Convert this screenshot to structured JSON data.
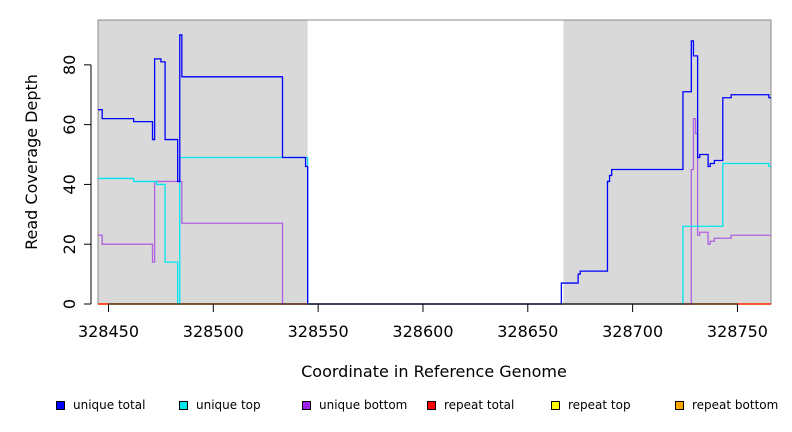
{
  "chart_data": {
    "type": "line",
    "xlabel": "Coordinate in Reference Genome",
    "ylabel": "Read Coverage Depth",
    "xlim": [
      328445,
      328766
    ],
    "ylim": [
      0,
      95
    ],
    "x_ticks": [
      328450,
      328500,
      328550,
      328600,
      328650,
      328700,
      328750
    ],
    "y_ticks": [
      0,
      20,
      40,
      60,
      80
    ],
    "shaded_regions": [
      [
        328445,
        328545
      ],
      [
        328667,
        328766
      ]
    ],
    "shade_color": "#d9d9d9",
    "series": [
      {
        "name": "unique total",
        "color": "#0000ff",
        "points": [
          [
            328445,
            65
          ],
          [
            328447,
            65
          ],
          [
            328447,
            62
          ],
          [
            328462,
            62
          ],
          [
            328462,
            61
          ],
          [
            328471,
            61
          ],
          [
            328471,
            55
          ],
          [
            328472,
            55
          ],
          [
            328472,
            82
          ],
          [
            328475,
            82
          ],
          [
            328475,
            81
          ],
          [
            328477,
            81
          ],
          [
            328477,
            55
          ],
          [
            328483,
            55
          ],
          [
            328483,
            41
          ],
          [
            328484,
            41
          ],
          [
            328484,
            90
          ],
          [
            328485,
            90
          ],
          [
            328485,
            76
          ],
          [
            328533,
            76
          ],
          [
            328533,
            49
          ],
          [
            328544,
            49
          ],
          [
            328544,
            46
          ],
          [
            328545,
            46
          ],
          [
            328545,
            0
          ],
          [
            328666,
            0
          ],
          [
            328666,
            7
          ],
          [
            328674,
            7
          ],
          [
            328674,
            10
          ],
          [
            328675,
            10
          ],
          [
            328675,
            11
          ],
          [
            328688,
            11
          ],
          [
            328688,
            41
          ],
          [
            328689,
            41
          ],
          [
            328689,
            43
          ],
          [
            328690,
            43
          ],
          [
            328690,
            45
          ],
          [
            328724,
            45
          ],
          [
            328724,
            71
          ],
          [
            328728,
            71
          ],
          [
            328728,
            88
          ],
          [
            328729,
            88
          ],
          [
            328729,
            83
          ],
          [
            328731,
            83
          ],
          [
            328731,
            49
          ],
          [
            328732,
            49
          ],
          [
            328732,
            50
          ],
          [
            328736,
            50
          ],
          [
            328736,
            46
          ],
          [
            328737,
            46
          ],
          [
            328737,
            47
          ],
          [
            328739,
            47
          ],
          [
            328739,
            48
          ],
          [
            328743,
            48
          ],
          [
            328743,
            69
          ],
          [
            328747,
            69
          ],
          [
            328747,
            70
          ],
          [
            328765,
            70
          ],
          [
            328765,
            69
          ],
          [
            328766,
            69
          ]
        ]
      },
      {
        "name": "unique top",
        "color": "#00e5ee",
        "points": [
          [
            328445,
            42
          ],
          [
            328462,
            42
          ],
          [
            328462,
            41
          ],
          [
            328473,
            41
          ],
          [
            328473,
            40
          ],
          [
            328477,
            40
          ],
          [
            328477,
            14
          ],
          [
            328483,
            14
          ],
          [
            328483,
            0
          ],
          [
            328484,
            0
          ],
          [
            328484,
            49
          ],
          [
            328545,
            49
          ],
          [
            328545,
            0
          ],
          [
            328724,
            0
          ],
          [
            328724,
            26
          ],
          [
            328743,
            26
          ],
          [
            328743,
            47
          ],
          [
            328765,
            47
          ],
          [
            328765,
            46
          ],
          [
            328766,
            46
          ]
        ]
      },
      {
        "name": "unique bottom",
        "color": "#b060e0",
        "points": [
          [
            328445,
            23
          ],
          [
            328447,
            23
          ],
          [
            328447,
            20
          ],
          [
            328471,
            20
          ],
          [
            328471,
            14
          ],
          [
            328472,
            14
          ],
          [
            328472,
            41
          ],
          [
            328485,
            41
          ],
          [
            328485,
            27
          ],
          [
            328533,
            27
          ],
          [
            328533,
            0
          ],
          [
            328728,
            0
          ],
          [
            328728,
            45
          ],
          [
            328729,
            45
          ],
          [
            328729,
            62
          ],
          [
            328730,
            62
          ],
          [
            328730,
            57
          ],
          [
            328731,
            57
          ],
          [
            328731,
            23
          ],
          [
            328732,
            23
          ],
          [
            328732,
            24
          ],
          [
            328736,
            24
          ],
          [
            328736,
            20
          ],
          [
            328737,
            20
          ],
          [
            328737,
            21
          ],
          [
            328739,
            21
          ],
          [
            328739,
            22
          ],
          [
            328747,
            22
          ],
          [
            328747,
            23
          ],
          [
            328766,
            23
          ]
        ]
      },
      {
        "name": "repeat total",
        "color": "#ff0000",
        "points": [
          [
            328445,
            0
          ],
          [
            328766,
            0
          ]
        ]
      },
      {
        "name": "repeat top",
        "color": "#ffff00",
        "points": [
          [
            328445,
            0
          ],
          [
            328766,
            0
          ]
        ]
      },
      {
        "name": "repeat bottom",
        "color": "#ff9900",
        "points": [
          [
            328445,
            0
          ],
          [
            328766,
            0
          ]
        ]
      }
    ],
    "legend": [
      {
        "label": "unique total",
        "color": "#0000ff"
      },
      {
        "label": "unique top",
        "color": "#00e5ee"
      },
      {
        "label": "unique bottom",
        "color": "#a020f0"
      },
      {
        "label": "repeat total",
        "color": "#ff0000"
      },
      {
        "label": "repeat top",
        "color": "#ffff00"
      },
      {
        "label": "repeat bottom",
        "color": "#ffa500"
      }
    ],
    "legend_placement": "bottom"
  }
}
